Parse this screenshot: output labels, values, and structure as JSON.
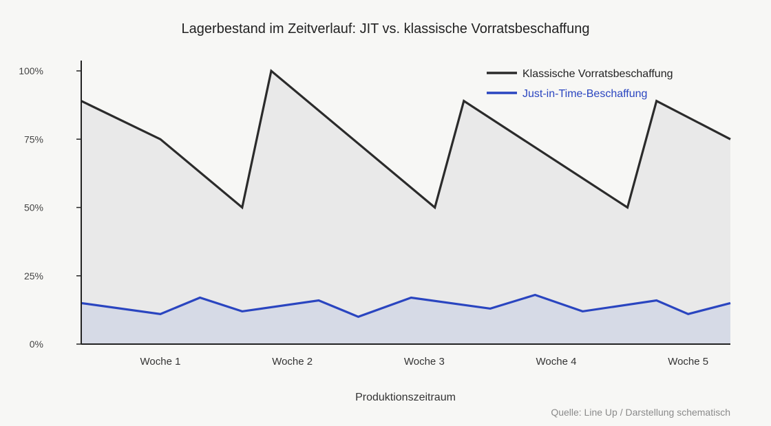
{
  "chart_data": {
    "type": "area",
    "title": "Lagerbestand im Zeitverlauf: JIT vs. klassische Vorratsbeschaffung",
    "xlabel": "Produktionszeitraum",
    "ylabel": "",
    "source": "Quelle: Line Up / Darstellung schematisch",
    "x_tick_labels": [
      "Woche 1",
      "Woche 2",
      "Woche 3",
      "Woche 4",
      "Woche 5"
    ],
    "x_tick_positions": [
      1,
      2,
      3,
      4,
      5
    ],
    "xlim": [
      0.4,
      5.32
    ],
    "y_tick_labels": [
      "0%",
      "25%",
      "50%",
      "75%",
      "100%"
    ],
    "y_tick_values": [
      0,
      25,
      50,
      75,
      100
    ],
    "ylim": [
      0,
      100
    ],
    "grid": false,
    "legend_position": "top-right",
    "series": [
      {
        "name": "Klassische Vorratsbeschaffung",
        "color": "#2b2b2b",
        "fill": "#e9e9e9",
        "x": [
          0.4,
          1.0,
          1.62,
          1.84,
          3.08,
          3.3,
          4.54,
          4.76,
          5.32
        ],
        "values": [
          89,
          75,
          50,
          100,
          50,
          89,
          50,
          89,
          75
        ]
      },
      {
        "name": "Just-in-Time-Beschaffung",
        "color": "#2a45c0",
        "fill": "#d6dae6",
        "x": [
          0.4,
          1.0,
          1.3,
          1.62,
          2.2,
          2.5,
          2.9,
          3.5,
          3.84,
          4.2,
          4.76,
          5.0,
          5.32
        ],
        "values": [
          15,
          11,
          17,
          12,
          16,
          10,
          17,
          13,
          18,
          12,
          16,
          11,
          15
        ]
      }
    ]
  }
}
